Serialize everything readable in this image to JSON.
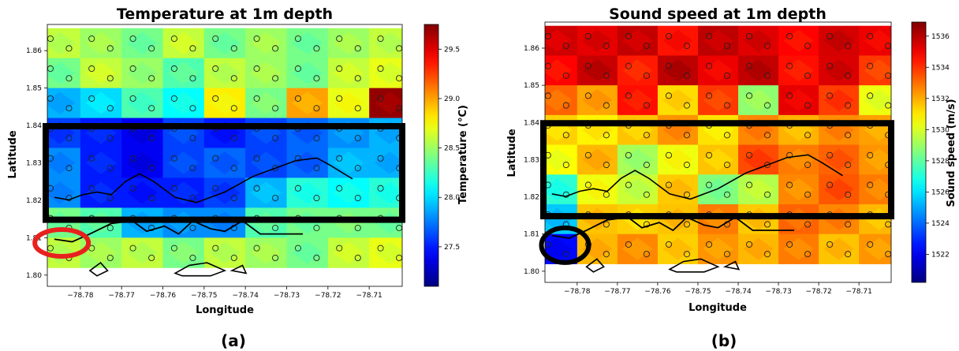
{
  "chart_data": [
    {
      "type": "heatmap",
      "panel_label": "(a)",
      "title": "Temperature  at 1m depth",
      "xlabel": "Longitude",
      "ylabel": "Latitude",
      "xlim": [
        -78.788,
        -78.702
      ],
      "ylim": [
        1.797,
        1.867
      ],
      "xticks": [
        -78.78,
        -78.77,
        -78.76,
        -78.75,
        -78.74,
        -78.73,
        -78.72,
        -78.71
      ],
      "xtick_labels": [
        "−78.78",
        "−78.77",
        "−78.76",
        "−78.75",
        "−78.74",
        "−78.73",
        "−78.72",
        "−78.71"
      ],
      "yticks": [
        1.8,
        1.81,
        1.82,
        1.83,
        1.84,
        1.85,
        1.86
      ],
      "ytick_labels": [
        "1.80",
        "1.81",
        "1.82",
        "1.83",
        "1.84",
        "1.85",
        "1.86"
      ],
      "colorbar": {
        "label": "Temperature (°C)",
        "min": 27.1,
        "max": 29.75,
        "ticks": [
          27.5,
          28.0,
          28.5,
          29.0,
          29.5
        ],
        "tick_labels": [
          "27.5",
          "28.0",
          "28.5",
          "29.0",
          "29.5"
        ],
        "colormap": "jet"
      },
      "highlight_box": {
        "lon": [
          -78.788,
          -78.702
        ],
        "lat": [
          1.8148,
          1.8398
        ],
        "color": "#000000"
      },
      "marker_circle": {
        "lon": -78.783,
        "lat": 1.8086,
        "color": "#e8201e"
      },
      "value_rows": [
        {
          "lat": 1.862,
          "values": [
            28.6,
            28.5,
            28.4,
            28.6,
            28.4,
            28.5,
            28.4,
            28.5,
            28.6
          ]
        },
        {
          "lat": 1.854,
          "values": [
            28.4,
            28.6,
            28.5,
            28.3,
            28.6,
            28.5,
            28.4,
            28.6,
            28.7
          ]
        },
        {
          "lat": 1.846,
          "values": [
            27.9,
            28.0,
            28.3,
            28.1,
            28.8,
            28.4,
            29.0,
            28.7,
            29.7
          ]
        },
        {
          "lat": 1.838,
          "values": [
            27.6,
            27.5,
            27.4,
            27.6,
            27.5,
            27.6,
            27.7,
            27.8,
            27.9
          ]
        },
        {
          "lat": 1.83,
          "values": [
            27.8,
            27.5,
            27.4,
            27.6,
            27.7,
            27.6,
            27.7,
            27.9,
            27.9
          ]
        },
        {
          "lat": 1.822,
          "values": [
            27.8,
            27.5,
            27.5,
            27.5,
            27.6,
            27.9,
            28.2,
            28.1,
            28.2
          ]
        },
        {
          "lat": 1.814,
          "values": [
            28.4,
            28.3,
            27.9,
            27.8,
            27.8,
            28.3,
            28.4,
            28.4,
            28.4
          ]
        },
        {
          "lat": 1.806,
          "values": [
            28.6,
            28.5,
            28.6,
            28.4,
            28.6,
            28.5,
            28.4,
            28.6,
            28.7
          ]
        }
      ],
      "value_lons": [
        -78.785,
        -78.775,
        -78.765,
        -78.755,
        -78.745,
        -78.735,
        -78.725,
        -78.715,
        -78.705
      ]
    },
    {
      "type": "heatmap",
      "panel_label": "(b)",
      "title": "Sound  speed  at 1m depth",
      "xlabel": "Longitude",
      "ylabel": "Latitude",
      "xlim": [
        -78.788,
        -78.702
      ],
      "ylim": [
        1.797,
        1.867
      ],
      "xticks": [
        -78.78,
        -78.77,
        -78.76,
        -78.75,
        -78.74,
        -78.73,
        -78.72,
        -78.71
      ],
      "xtick_labels": [
        "−78.78",
        "−78.77",
        "−78.76",
        "−78.75",
        "−78.74",
        "−78.73",
        "−78.72",
        "−78.71"
      ],
      "yticks": [
        1.8,
        1.81,
        1.82,
        1.83,
        1.84,
        1.85,
        1.86
      ],
      "ytick_labels": [
        "1.80",
        "1.81",
        "1.82",
        "1.83",
        "1.84",
        "1.85",
        "1.86"
      ],
      "colorbar": {
        "label": "Sound speed (m/s)",
        "min": 1520.2,
        "max": 1536.9,
        "ticks": [
          1522,
          1524,
          1526,
          1528,
          1530,
          1532,
          1534,
          1536
        ],
        "tick_labels": [
          "1522",
          "1524",
          "1526",
          "1528",
          "1530",
          "1532",
          "1534",
          "1536"
        ],
        "colormap": "jet"
      },
      "highlight_box": {
        "lon": [
          -78.788,
          -78.702
        ],
        "lat": [
          1.8148,
          1.8398
        ],
        "color": "#000000"
      },
      "marker_circle": {
        "lon": -78.783,
        "lat": 1.807,
        "color": "#000000"
      },
      "value_rows": [
        {
          "lat": 1.862,
          "values": [
            1535.6,
            1535.2,
            1535.8,
            1534.5,
            1535.9,
            1535.3,
            1534.8,
            1535.5,
            1535.1
          ]
        },
        {
          "lat": 1.854,
          "values": [
            1534.8,
            1535.7,
            1534.4,
            1535.9,
            1535.1,
            1535.8,
            1534.6,
            1535.4,
            1533.9
          ]
        },
        {
          "lat": 1.846,
          "values": [
            1533.2,
            1532.1,
            1534.6,
            1531.2,
            1533.9,
            1528.8,
            1535.2,
            1533.8,
            1530.4
          ]
        },
        {
          "lat": 1.838,
          "values": [
            1531.4,
            1530.8,
            1531.6,
            1532.4,
            1531.1,
            1532.6,
            1531.9,
            1532.5,
            1532.2
          ]
        },
        {
          "lat": 1.83,
          "values": [
            1530.6,
            1531.8,
            1529.2,
            1530.4,
            1531.6,
            1533.6,
            1532.8,
            1533.2,
            1532.4
          ]
        },
        {
          "lat": 1.822,
          "values": [
            1527.2,
            1530.4,
            1529.8,
            1531.5,
            1528.6,
            1529.4,
            1532.6,
            1533.4,
            1532.8
          ]
        },
        {
          "lat": 1.814,
          "values": [
            1525.6,
            1531.6,
            1531.4,
            1531.6,
            1532.8,
            1531.5,
            1533.2,
            1532.6,
            1531.8
          ]
        },
        {
          "lat": 1.806,
          "values": [
            1522.4,
            1531.8,
            1532.6,
            1531.4,
            1532.4,
            1531.8,
            1532.8,
            1531.6,
            1532.4
          ]
        }
      ],
      "value_lons": [
        -78.785,
        -78.775,
        -78.765,
        -78.755,
        -78.745,
        -78.735,
        -78.725,
        -78.715,
        -78.705
      ]
    }
  ]
}
